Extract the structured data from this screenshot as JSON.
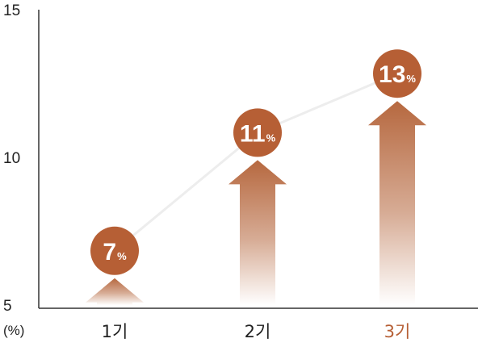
{
  "chart_data": {
    "type": "bar",
    "categories": [
      "1기",
      "2기",
      "3기"
    ],
    "values": [
      7,
      11,
      13
    ],
    "value_labels": [
      "7",
      "11",
      "13"
    ],
    "value_suffix": "%",
    "ylim": [
      5,
      15
    ],
    "yticks": [
      5,
      10,
      15
    ],
    "ytick_labels": [
      "5",
      "10",
      "15"
    ],
    "y_unit_label": "(%)",
    "grid": false,
    "legend": "none"
  },
  "colors": {
    "accent": "#B65F35",
    "arrow": "#B6683F",
    "trend_line": "#EDEDED",
    "axis": "#333333",
    "category_default": "#222222",
    "category_highlight": "#B65F35"
  },
  "highlight_index": 2
}
